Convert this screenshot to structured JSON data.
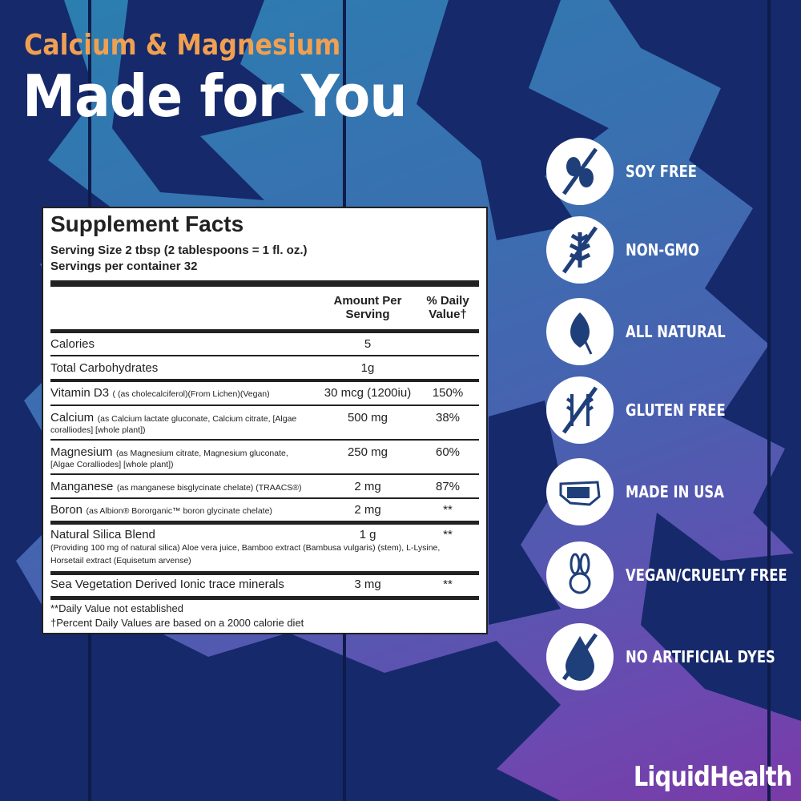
{
  "header": {
    "subtitle": "Calcium & Magnesium",
    "title": "Made for You"
  },
  "facts": {
    "heading": "Supplement Facts",
    "serving_size": "Serving Size 2 tbsp (2 tablespoons = 1 fl. oz.)",
    "servings": "Servings per container 32",
    "col_amount": [
      "Amount Per",
      "Serving"
    ],
    "col_dv": [
      "% Daily",
      "Value†"
    ],
    "rows": [
      {
        "name": "Calories",
        "detail": "",
        "amount": "5",
        "dv": ""
      },
      {
        "name": "Total Carbohydrates",
        "detail": "",
        "amount": "1g",
        "dv": ""
      },
      {
        "name": "Vitamin D3",
        "detail": "( (as cholecalciferol)(From Lichen)(Vegan)",
        "amount": "30 mcg (1200iu)",
        "dv": "150%"
      },
      {
        "name": "Calcium",
        "detail": "(as Calcium lactate gluconate, Calcium citrate, [Algae",
        "detail2": "coralliodes] [whole plant])",
        "amount": "500 mg",
        "dv": "38%"
      },
      {
        "name": "Magnesium",
        "detail": "(as Magnesium citrate, Magnesium gluconate,",
        "detail2": "[Algae Coralliodes] [whole plant])",
        "amount": "250 mg",
        "dv": "60%"
      },
      {
        "name": "Manganese",
        "detail": "(as manganese bisglycinate chelate) (TRAACS®)",
        "amount": "2 mg",
        "dv": "87%"
      },
      {
        "name": "Boron",
        "detail": "(as Albion® Bororganic™ boron glycinate chelate)",
        "amount": "2 mg",
        "dv": "**"
      },
      {
        "name": "Natural Silica Blend",
        "detail": "(Providing 100 mg of natural silica) Aloe vera juice, Bamboo extract (Bambusa vulgaris) (stem), L-Lysine,",
        "detail2": "Horsetail extract (Equisetum arvense)",
        "amount": "1 g",
        "dv": "**"
      },
      {
        "name": "Sea Vegetation Derived Ionic trace minerals",
        "detail": "",
        "amount": "3 mg",
        "dv": "**"
      }
    ],
    "footnote1": "**Daily Value not established",
    "footnote2": "†Percent Daily Values are based on a 2000 calorie diet"
  },
  "badges": [
    {
      "label": "SOY FREE",
      "icon": "soy-free-icon"
    },
    {
      "label": "NON-GMO",
      "icon": "non-gmo-icon"
    },
    {
      "label": "ALL NATURAL",
      "icon": "leaf-icon"
    },
    {
      "label": "GLUTEN FREE",
      "icon": "gluten-free-icon"
    },
    {
      "label": "MADE IN USA",
      "icon": "usa-map-icon"
    },
    {
      "label": "VEGAN/CRUELTY FREE",
      "icon": "bunny-icon"
    },
    {
      "label": "NO ARTIFICIAL DYES",
      "icon": "no-dye-drop-icon"
    }
  ],
  "brand": {
    "logo": "LiquidHealth"
  },
  "colors": {
    "accent": "#f0a050",
    "icon": "#1f3f7a",
    "trees": "#14286a"
  }
}
